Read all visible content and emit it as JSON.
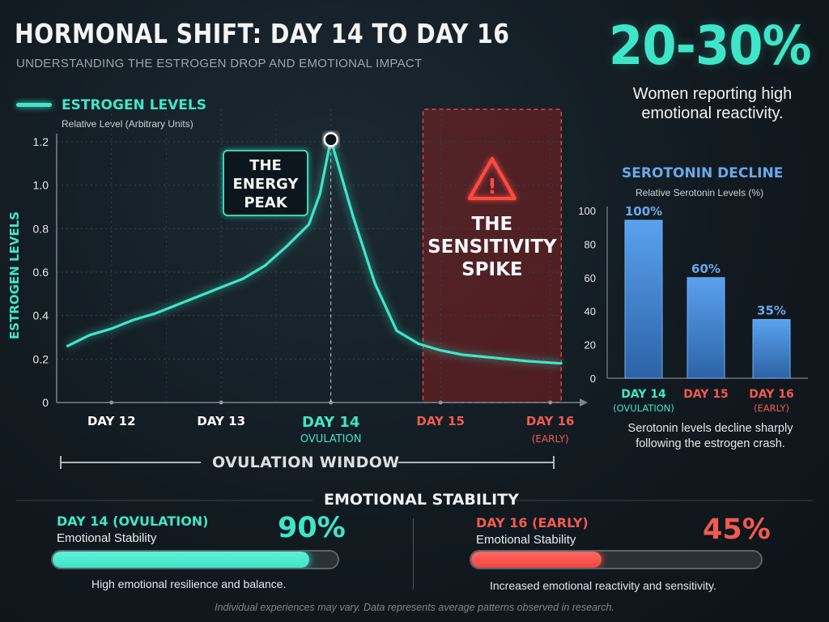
{
  "header": {
    "title": "HORMONAL SHIFT: DAY 14 TO DAY 16",
    "subtitle": "UNDERSTANDING THE ESTROGEN DROP AND EMOTIONAL IMPACT"
  },
  "stat": {
    "value": "20-30%",
    "description": "Women reporting high emotional reactivity."
  },
  "chart_data": [
    {
      "type": "line",
      "legend": [
        "ESTROGEN LEVELS"
      ],
      "legend_subtitle": "Relative Level (Arbitrary Units)",
      "ylabel": "ESTROGEN LEVELS",
      "ylim": [
        0,
        1.2
      ],
      "yticks": [
        "0",
        "0.2",
        "0.4",
        "0.6",
        "0.8",
        "1.0",
        "1.2"
      ],
      "xlim": [
        11.5,
        16.15
      ],
      "xticks": [
        {
          "x": 12,
          "label": "DAY 12",
          "sub": "",
          "color": "#ffffff"
        },
        {
          "x": 13,
          "label": "DAY 13",
          "sub": "",
          "color": "#ffffff"
        },
        {
          "x": 14,
          "label": "DAY 14",
          "sub": "OVULATION",
          "color": "#3ee6c8"
        },
        {
          "x": 15,
          "label": "DAY 15",
          "sub": "",
          "color": "#f05a4f"
        },
        {
          "x": 16,
          "label": "DAY 16",
          "sub": "(EARLY)",
          "color": "#f05a4f"
        }
      ],
      "grid": true,
      "series": [
        {
          "name": "ESTROGEN LEVELS",
          "color": "#3ee6c8",
          "x": [
            11.6,
            11.8,
            12.0,
            12.2,
            12.4,
            12.6,
            12.8,
            13.0,
            13.2,
            13.4,
            13.6,
            13.8,
            13.9,
            14.0,
            14.2,
            14.4,
            14.6,
            14.8,
            15.0,
            15.2,
            15.4,
            15.6,
            15.8,
            16.1
          ],
          "y": [
            0.26,
            0.31,
            0.34,
            0.38,
            0.41,
            0.45,
            0.49,
            0.53,
            0.57,
            0.63,
            0.72,
            0.82,
            0.96,
            1.21,
            0.86,
            0.55,
            0.33,
            0.27,
            0.24,
            0.22,
            0.21,
            0.2,
            0.19,
            0.18
          ]
        }
      ],
      "annotations": [
        {
          "text": "THE ENERGY PEAK",
          "x": 14,
          "y": 1.21
        },
        {
          "text": "THE SENSITIVITY SPIKE",
          "region": [
            14.84,
            16.1
          ]
        }
      ],
      "window": {
        "label": "OVULATION WINDOW",
        "range": [
          11.5,
          16.05
        ]
      }
    },
    {
      "type": "bar",
      "title": "SEROTONIN DECLINE",
      "subtitle": "Relative Serotonin Levels (%)",
      "categories": [
        "DAY 14",
        "DAY 15",
        "DAY 16"
      ],
      "category_subs": [
        "(OVULATION)",
        "",
        "(EARLY)"
      ],
      "category_colors": [
        "#3ee6c8",
        "#f05a4f",
        "#f05a4f"
      ],
      "values": [
        100,
        60,
        35
      ],
      "labels": [
        "100%",
        "60%",
        "35%"
      ],
      "ylim": [
        0,
        100
      ],
      "yticks": [
        "0",
        "20",
        "40",
        "60",
        "80",
        "100"
      ],
      "bar_color": "#4b8fdb",
      "note": "Serotonin levels decline sharply following the estrogen crash."
    }
  ],
  "emotional": {
    "title": "EMOTIONAL STABILITY",
    "left": {
      "day": "DAY 14 (OVULATION)",
      "label": "Emotional Stability",
      "percent": "90%",
      "fill": 0.9,
      "color": "#3ee6c8",
      "desc": "High emotional resilience and balance."
    },
    "right": {
      "day": "DAY 16 (EARLY)",
      "label": "Emotional Stability",
      "percent": "45%",
      "fill": 0.45,
      "color": "#f0463f",
      "desc": "Increased emotional reactivity and sensitivity."
    }
  },
  "footer": "Individual experiences may vary. Data represents average patterns observed in research."
}
